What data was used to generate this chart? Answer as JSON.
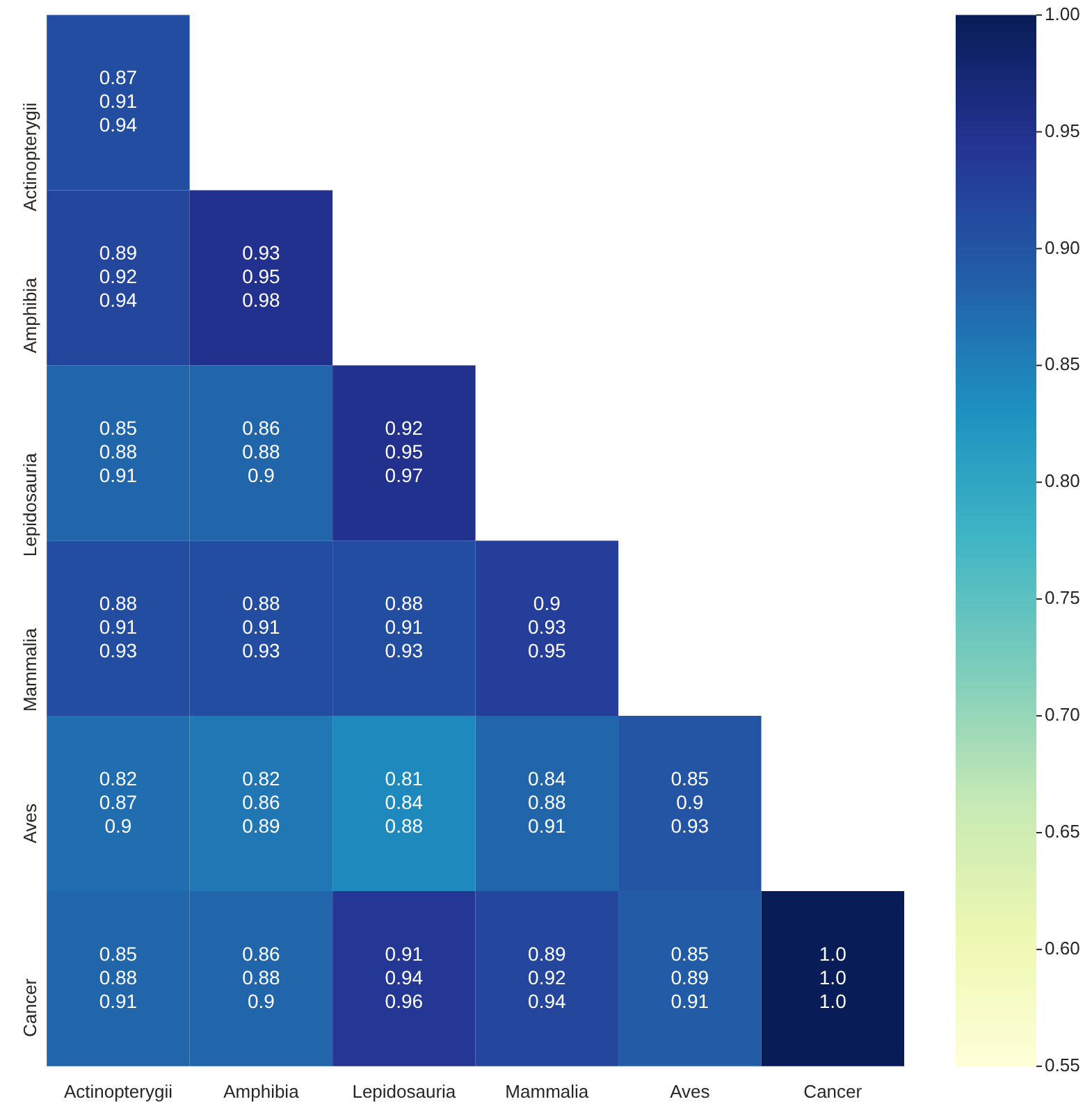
{
  "chart_data": {
    "type": "heatmap",
    "categories": [
      "Actinopterygii",
      "Amphibia",
      "Lepidosauria",
      "Mammalia",
      "Aves",
      "Cancer"
    ],
    "y_categories": [
      "Actinopterygii",
      "Amphibia",
      "Lepidosauria",
      "Mammalia",
      "Aves",
      "Cancer"
    ],
    "cells": [
      [
        0.91,
        null,
        null,
        null,
        null,
        null
      ],
      [
        0.92,
        0.95,
        null,
        null,
        null,
        null
      ],
      [
        0.88,
        0.88,
        0.95,
        null,
        null,
        null
      ],
      [
        0.91,
        0.91,
        0.91,
        0.93,
        null,
        null
      ],
      [
        0.87,
        0.86,
        0.84,
        0.88,
        0.9,
        null
      ],
      [
        0.88,
        0.88,
        0.94,
        0.92,
        0.89,
        1.0
      ]
    ],
    "cell_labels": [
      [
        "0.87\n0.91\n0.94",
        null,
        null,
        null,
        null,
        null
      ],
      [
        "0.89\n0.92\n0.94",
        "0.93\n0.95\n0.98",
        null,
        null,
        null,
        null
      ],
      [
        "0.85\n0.88\n0.91",
        "0.86\n0.88\n0.9",
        "0.92\n0.95\n0.97",
        null,
        null,
        null
      ],
      [
        "0.88\n0.91\n0.93",
        "0.88\n0.91\n0.93",
        "0.88\n0.91\n0.93",
        "0.9\n0.93\n0.95",
        null,
        null
      ],
      [
        "0.82\n0.87\n0.9",
        "0.82\n0.86\n0.89",
        "0.81\n0.84\n0.88",
        "0.84\n0.88\n0.91",
        "0.85\n0.9\n0.93",
        null
      ],
      [
        "0.85\n0.88\n0.91",
        "0.86\n0.88\n0.9",
        "0.91\n0.94\n0.96",
        "0.89\n0.92\n0.94",
        "0.85\n0.89\n0.91",
        "1.0\n1.0\n1.0"
      ]
    ],
    "clim": [
      0.55,
      1.0
    ],
    "cticks": [
      0.55,
      {
        "value": 0.6,
        "label": "0.60"
      },
      0.65,
      {
        "value": 0.7,
        "label": "0.70"
      },
      0.75,
      {
        "value": 0.8,
        "label": "0.80"
      },
      0.85,
      {
        "value": 0.9,
        "label": "0.90"
      },
      0.95,
      {
        "value": 1.0,
        "label": "1.00"
      }
    ]
  }
}
